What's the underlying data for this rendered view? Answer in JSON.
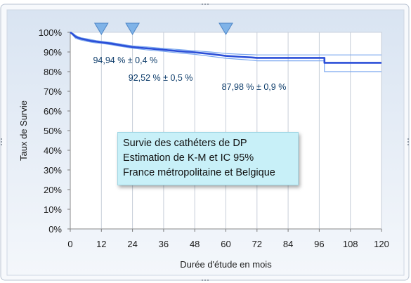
{
  "chart_data": {
    "type": "line",
    "xlabel": "Durée d'étude en mois",
    "ylabel": "Taux de Survie",
    "xlim": [
      0,
      120
    ],
    "ylim": [
      0,
      100
    ],
    "x_ticks": [
      "0",
      "12",
      "24",
      "36",
      "48",
      "60",
      "72",
      "84",
      "96",
      "108",
      "120"
    ],
    "y_ticks": [
      "0%",
      "10%",
      "20%",
      "30%",
      "40%",
      "50%",
      "60%",
      "70%",
      "80%",
      "90%",
      "100%"
    ],
    "grid": "vertical",
    "series": [
      {
        "role": "estimate",
        "color": "#2b4fd8",
        "x": [
          0,
          1,
          2,
          3,
          4,
          6,
          8,
          10,
          12,
          16,
          20,
          24,
          30,
          36,
          42,
          48,
          54,
          60,
          66,
          70,
          72,
          78,
          84,
          90,
          96,
          98,
          98,
          104,
          110,
          120
        ],
        "y": [
          100,
          99.0,
          97.8,
          97.2,
          96.8,
          96.2,
          95.6,
          95.3,
          94.9,
          94.2,
          93.3,
          92.5,
          91.8,
          91.1,
          90.4,
          89.8,
          89.0,
          88.0,
          87.5,
          87.2,
          87.0,
          87.0,
          87.0,
          87.0,
          87.0,
          87.0,
          84.5,
          84.5,
          84.5,
          84.5
        ]
      },
      {
        "role": "upper-ci",
        "color": "#7aa7ef",
        "x": [
          0,
          1,
          2,
          3,
          4,
          6,
          8,
          10,
          12,
          16,
          20,
          24,
          30,
          36,
          42,
          48,
          54,
          60,
          66,
          70,
          72,
          78,
          84,
          90,
          96,
          98,
          98,
          104,
          110,
          120
        ],
        "y": [
          100,
          99.5,
          98.5,
          97.8,
          97.3,
          96.8,
          96.3,
          95.8,
          95.4,
          94.8,
          93.9,
          93.1,
          92.5,
          91.8,
          91.2,
          90.6,
          90.0,
          89.2,
          88.8,
          88.6,
          88.5,
          88.5,
          88.5,
          88.5,
          88.5,
          88.5,
          88.5,
          88.5,
          88.5,
          88.5
        ]
      },
      {
        "role": "lower-ci",
        "color": "#7aa7ef",
        "x": [
          0,
          1,
          2,
          3,
          4,
          6,
          8,
          10,
          12,
          16,
          20,
          24,
          30,
          36,
          42,
          48,
          54,
          60,
          66,
          70,
          72,
          78,
          84,
          90,
          96,
          98,
          98,
          104,
          110,
          120
        ],
        "y": [
          100,
          98.5,
          97.0,
          96.5,
          96.1,
          95.5,
          95.0,
          94.6,
          94.4,
          93.6,
          92.7,
          91.9,
          91.0,
          90.3,
          89.5,
          88.8,
          87.8,
          86.8,
          86.2,
          85.8,
          85.5,
          85.5,
          85.5,
          85.5,
          85.5,
          85.5,
          80.0,
          80.0,
          80.0,
          80.0
        ]
      }
    ],
    "markers": [
      {
        "x": 12,
        "label": "94,94 % ± 0,4 %"
      },
      {
        "x": 24,
        "label": "92,52 % ± 0,5 %"
      },
      {
        "x": 60,
        "label": "87,98 % ± 0,9 %"
      }
    ],
    "marker_color": "#7fb3e8",
    "legend_lines": [
      "Survie des cathéters de DP",
      "Estimation de K-M et IC 95%",
      "France métropolitaine et Belgique"
    ]
  }
}
